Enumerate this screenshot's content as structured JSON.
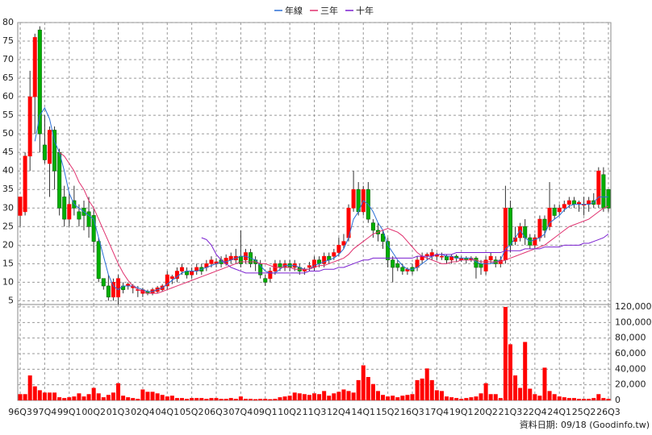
{
  "chart_data": [
    {
      "type": "candlestick",
      "categories": [
        "96Q3",
        null,
        null,
        null,
        null,
        "97Q4",
        null,
        null,
        null,
        null,
        "99Q1",
        null,
        null,
        null,
        null,
        "00Q2",
        null,
        null,
        null,
        null,
        "01Q3",
        null,
        null,
        null,
        null,
        "02Q4",
        null,
        null,
        null,
        null,
        "04Q1",
        null,
        null,
        null,
        null,
        "05Q2",
        null,
        null,
        null,
        null,
        "06Q3",
        null,
        null,
        null,
        null,
        "07Q4",
        null,
        null,
        null,
        null,
        "09Q1",
        null,
        null,
        null,
        null,
        "10Q2",
        null,
        null,
        null,
        null,
        "11Q3",
        null,
        null,
        null,
        null,
        "12Q4",
        null,
        null,
        null,
        null,
        "14Q1",
        null,
        null,
        null,
        null,
        "15Q2",
        null,
        null,
        null,
        null,
        "16Q3",
        null,
        null,
        null,
        null,
        "17Q4",
        null,
        null,
        null,
        null,
        "19Q1",
        null,
        null,
        null,
        null,
        "20Q2",
        null,
        null,
        null,
        null,
        "21Q3",
        null,
        null,
        null,
        null,
        "22Q4",
        null,
        null,
        null,
        null,
        "24Q1",
        null,
        null,
        null,
        null,
        "25Q2",
        null,
        null,
        null,
        null,
        "26Q3"
      ],
      "open": [
        28,
        29,
        44,
        60,
        78,
        47,
        42,
        51,
        45,
        33,
        27,
        32,
        29,
        30,
        29,
        28,
        21,
        11,
        9,
        6,
        6,
        9,
        9,
        8.5,
        8,
        7,
        7.5,
        7,
        7.5,
        8,
        9,
        11,
        11,
        13,
        13,
        12,
        13,
        14,
        14,
        15,
        15,
        16,
        15,
        16,
        16,
        17,
        16,
        18,
        16,
        15,
        11,
        11,
        13,
        15,
        14,
        15,
        14,
        14,
        13,
        14,
        14,
        16,
        15,
        17,
        17,
        18,
        20,
        22,
        30,
        35,
        29,
        35,
        26,
        24,
        23,
        21,
        16,
        15,
        14,
        13,
        14,
        14,
        16,
        17,
        17,
        17,
        17,
        17,
        16,
        17,
        16,
        16.5,
        16,
        16.5,
        15,
        13,
        16,
        16,
        15,
        16,
        30,
        21,
        22,
        25,
        22,
        20,
        22,
        27,
        25,
        30,
        29,
        30,
        31,
        32,
        31,
        31,
        31,
        32,
        31,
        39,
        35
      ],
      "high": [
        33,
        45,
        67,
        77,
        79,
        55,
        52,
        52,
        46,
        36,
        34,
        36,
        31,
        32,
        33,
        30,
        22,
        11,
        12,
        11,
        12,
        10,
        10,
        9.5,
        9,
        8.5,
        8,
        8.5,
        9,
        9.5,
        13,
        12,
        14,
        15,
        14,
        14,
        15,
        15,
        16,
        17,
        16.5,
        17,
        17.5,
        18,
        19,
        24,
        19,
        19,
        17,
        16,
        12,
        14,
        16,
        16,
        16,
        16,
        16,
        15,
        14,
        15.5,
        17,
        17,
        18,
        18,
        19,
        22,
        23,
        31,
        40,
        37,
        36,
        37,
        27,
        26,
        24,
        22,
        17,
        16,
        15,
        14,
        15,
        17,
        18,
        18,
        19,
        18,
        18,
        17.5,
        17.5,
        17.5,
        17,
        17,
        17,
        17,
        16,
        17,
        18,
        17,
        17,
        36,
        32,
        25,
        26,
        27,
        23,
        23,
        28,
        28,
        37,
        31,
        31,
        32,
        33,
        33,
        32,
        33,
        33,
        34,
        41,
        41,
        35
      ],
      "low": [
        25,
        28,
        40,
        50,
        45,
        42,
        33,
        35,
        28,
        25,
        25,
        28,
        25,
        24,
        22,
        18,
        10,
        8,
        5,
        5,
        4,
        7,
        8,
        7,
        6,
        6,
        6.5,
        6.5,
        7,
        7.5,
        8,
        9.5,
        10,
        12,
        11,
        11,
        12,
        12,
        13,
        14,
        14,
        14,
        14.5,
        15,
        15,
        14,
        15,
        14,
        13,
        11,
        9,
        10,
        12,
        13,
        13,
        13,
        13,
        12,
        12,
        13,
        13,
        14,
        14,
        15,
        16,
        17,
        19,
        21,
        29,
        28,
        28,
        26,
        22,
        21,
        19,
        14,
        10,
        13,
        12,
        12,
        12,
        13,
        15,
        16,
        16,
        16,
        16,
        15,
        15,
        15.5,
        15.5,
        15,
        15.5,
        11,
        12,
        12,
        15,
        14,
        14,
        15,
        18,
        20,
        21,
        20,
        19,
        19,
        21,
        22,
        24,
        27,
        28,
        29,
        30,
        30,
        29,
        28,
        29,
        30,
        30,
        29,
        29
      ],
      "close": [
        33,
        44,
        60,
        76,
        50,
        43,
        51,
        40,
        30,
        27,
        31,
        30,
        27,
        28,
        25,
        21,
        11,
        9,
        6,
        10,
        11,
        8,
        9.5,
        9,
        8,
        8,
        7,
        8,
        8.5,
        9,
        12,
        11.5,
        13,
        14,
        12,
        13,
        14,
        13,
        15,
        16,
        15.5,
        15,
        16.5,
        17,
        17,
        15,
        18,
        15,
        15,
        12,
        10,
        13,
        15,
        14,
        15,
        14,
        15,
        13,
        13.5,
        14.5,
        16,
        15,
        17,
        16,
        18,
        20,
        21,
        30,
        35,
        29,
        35,
        27,
        24,
        23,
        21,
        16,
        14,
        14,
        13,
        13.5,
        13,
        16,
        17,
        17.5,
        18,
        17.5,
        17,
        16,
        17,
        16.5,
        16.5,
        16,
        16.5,
        14,
        14,
        16,
        17,
        15,
        16,
        30,
        20,
        22,
        25,
        22,
        20,
        22,
        27,
        24,
        30,
        28,
        30,
        31,
        32,
        31,
        31.5,
        31,
        32,
        31,
        40,
        30,
        30
      ],
      "up_color": "#ff0000",
      "down_color": "#00b000",
      "series": [
        {
          "name": "年線",
          "color": "#2a6fd6",
          "values": [
            null,
            null,
            null,
            48,
            55,
            57,
            54,
            48,
            45,
            40,
            34,
            31,
            30,
            29,
            28,
            27,
            22,
            17,
            12,
            9,
            8,
            9,
            9,
            9,
            8.5,
            8,
            7.5,
            7.5,
            8,
            8.5,
            9.5,
            10.5,
            11.5,
            12.5,
            13,
            13,
            13,
            13.5,
            14,
            14.5,
            15,
            15.5,
            15.5,
            16,
            16.5,
            17,
            17,
            16.5,
            16,
            14.5,
            13,
            12.5,
            12.5,
            13.5,
            14.5,
            14.5,
            14.5,
            14,
            13.5,
            13.5,
            14.5,
            15,
            15.5,
            16,
            16.5,
            17.5,
            19,
            22,
            27,
            29,
            32,
            31,
            29,
            26,
            24,
            20,
            18,
            16,
            14.5,
            13.5,
            13.5,
            14,
            15,
            16,
            17,
            17.5,
            17.5,
            17,
            17,
            16.5,
            16.5,
            16.5,
            16.5,
            15.5,
            15,
            15,
            15,
            15.5,
            16,
            19,
            20,
            22,
            24,
            22,
            21,
            21.5,
            22,
            23,
            26,
            27,
            28,
            29.5,
            30.5,
            31,
            31,
            31,
            31,
            31.5,
            33,
            33,
            33
          ]
        },
        {
          "name": "三年",
          "color": "#e0306e",
          "values": [
            null,
            null,
            null,
            null,
            null,
            null,
            null,
            null,
            45,
            44,
            42,
            40,
            37,
            35,
            32,
            30,
            27,
            24,
            21,
            18,
            15,
            12.5,
            10.5,
            9,
            8,
            7.5,
            7,
            7,
            7,
            7.5,
            8,
            8.5,
            9,
            9.5,
            10,
            10.5,
            11,
            11.5,
            12,
            12.5,
            13,
            13.5,
            14,
            14.5,
            15,
            15.5,
            15.5,
            15.5,
            15.5,
            15,
            15,
            14.5,
            14,
            14,
            14,
            14,
            13.5,
            13.5,
            13.5,
            13.5,
            14,
            14.5,
            14.5,
            15,
            15.5,
            16,
            16.5,
            17.5,
            19,
            20,
            21,
            22,
            23,
            23.5,
            24,
            24.5,
            24,
            23.5,
            22.5,
            21,
            19.5,
            18,
            17,
            16.5,
            16,
            15.5,
            15,
            15,
            15.5,
            15.5,
            16,
            16,
            16,
            16,
            15.5,
            15.5,
            15.5,
            15.5,
            15.5,
            16,
            16.5,
            17,
            17.5,
            18,
            18.5,
            19,
            19.5,
            20,
            21,
            22,
            23,
            24,
            25,
            25.5,
            26,
            26.5,
            27,
            28,
            29,
            30,
            30.5
          ]
        },
        {
          "name": "十年",
          "color": "#7a1fd0",
          "values": [
            null,
            null,
            null,
            null,
            null,
            null,
            null,
            null,
            null,
            null,
            null,
            null,
            null,
            null,
            null,
            null,
            null,
            null,
            null,
            null,
            null,
            null,
            null,
            null,
            null,
            null,
            null,
            null,
            null,
            null,
            null,
            null,
            null,
            null,
            null,
            null,
            null,
            22,
            21.5,
            20,
            17.5,
            16,
            15,
            14,
            13.5,
            13,
            12.5,
            12.5,
            12.5,
            12.5,
            12.5,
            12.5,
            12.5,
            12.5,
            12.5,
            12.5,
            12.5,
            12.5,
            12.5,
            13,
            13,
            13,
            13.5,
            13.5,
            13.5,
            14,
            14,
            14.5,
            15,
            15.5,
            16,
            16,
            16.5,
            16.5,
            16.5,
            16.5,
            16.5,
            16.5,
            16.5,
            16.5,
            16.5,
            17,
            17,
            17,
            17,
            17.5,
            17.5,
            17.5,
            17.5,
            18,
            18,
            18,
            18,
            18,
            18,
            18,
            18,
            18,
            18,
            18.5,
            18.5,
            18.5,
            18.5,
            19,
            19,
            19,
            19,
            19.5,
            19.5,
            19.5,
            19.5,
            20,
            20,
            20,
            20,
            20.5,
            20.5,
            21,
            21.5,
            22,
            23
          ]
        }
      ],
      "ylim": [
        4,
        80
      ],
      "yticks": [
        5,
        10,
        15,
        20,
        25,
        30,
        35,
        40,
        45,
        50,
        55,
        60,
        65,
        70,
        75,
        80
      ],
      "grid": true
    },
    {
      "type": "bar",
      "color": "#ff0000",
      "values": [
        8000,
        8000,
        32000,
        18000,
        13000,
        10000,
        10000,
        10000,
        4000,
        3000,
        4000,
        5000,
        9000,
        5000,
        8000,
        16000,
        9000,
        4000,
        7000,
        10000,
        22000,
        6000,
        4000,
        3000,
        2000,
        14000,
        11000,
        11000,
        9000,
        7000,
        5000,
        6000,
        3000,
        3000,
        2000,
        3000,
        3000,
        3000,
        2000,
        3000,
        3000,
        2000,
        2000,
        3000,
        2000,
        5000,
        2000,
        2000,
        1500,
        2000,
        2000,
        1500,
        2000,
        4000,
        5000,
        6000,
        10000,
        9000,
        8000,
        7000,
        9000,
        8000,
        12000,
        6000,
        9000,
        11000,
        14000,
        12000,
        10000,
        26000,
        45000,
        30000,
        21000,
        12000,
        7000,
        5000,
        6000,
        4000,
        6000,
        7000,
        8000,
        26000,
        28000,
        41000,
        26000,
        13000,
        12000,
        5000,
        4000,
        3000,
        2000,
        3000,
        4000,
        5000,
        9000,
        22000,
        8000,
        8000,
        3000,
        120000,
        72000,
        32000,
        16000,
        75000,
        15000,
        8000,
        6000,
        42000,
        12000,
        8000,
        5000,
        4000,
        3000,
        3000,
        2000,
        2000,
        2000,
        3000,
        8000,
        3000,
        2000
      ],
      "ylim": [
        0,
        120000
      ],
      "yticks": [
        0,
        {
          "value": 20000,
          "label": "20,000"
        },
        {
          "value": 40000,
          "label": "40,000"
        },
        {
          "value": 60000,
          "label": "60,000"
        },
        {
          "value": 80000,
          "label": "80,000"
        },
        {
          "value": 100000,
          "label": "100,000"
        },
        {
          "value": 120000,
          "label": "120,000"
        }
      ],
      "grid": true,
      "footnote": "資料日期: 09/18 (Goodinfo.tw)"
    }
  ]
}
